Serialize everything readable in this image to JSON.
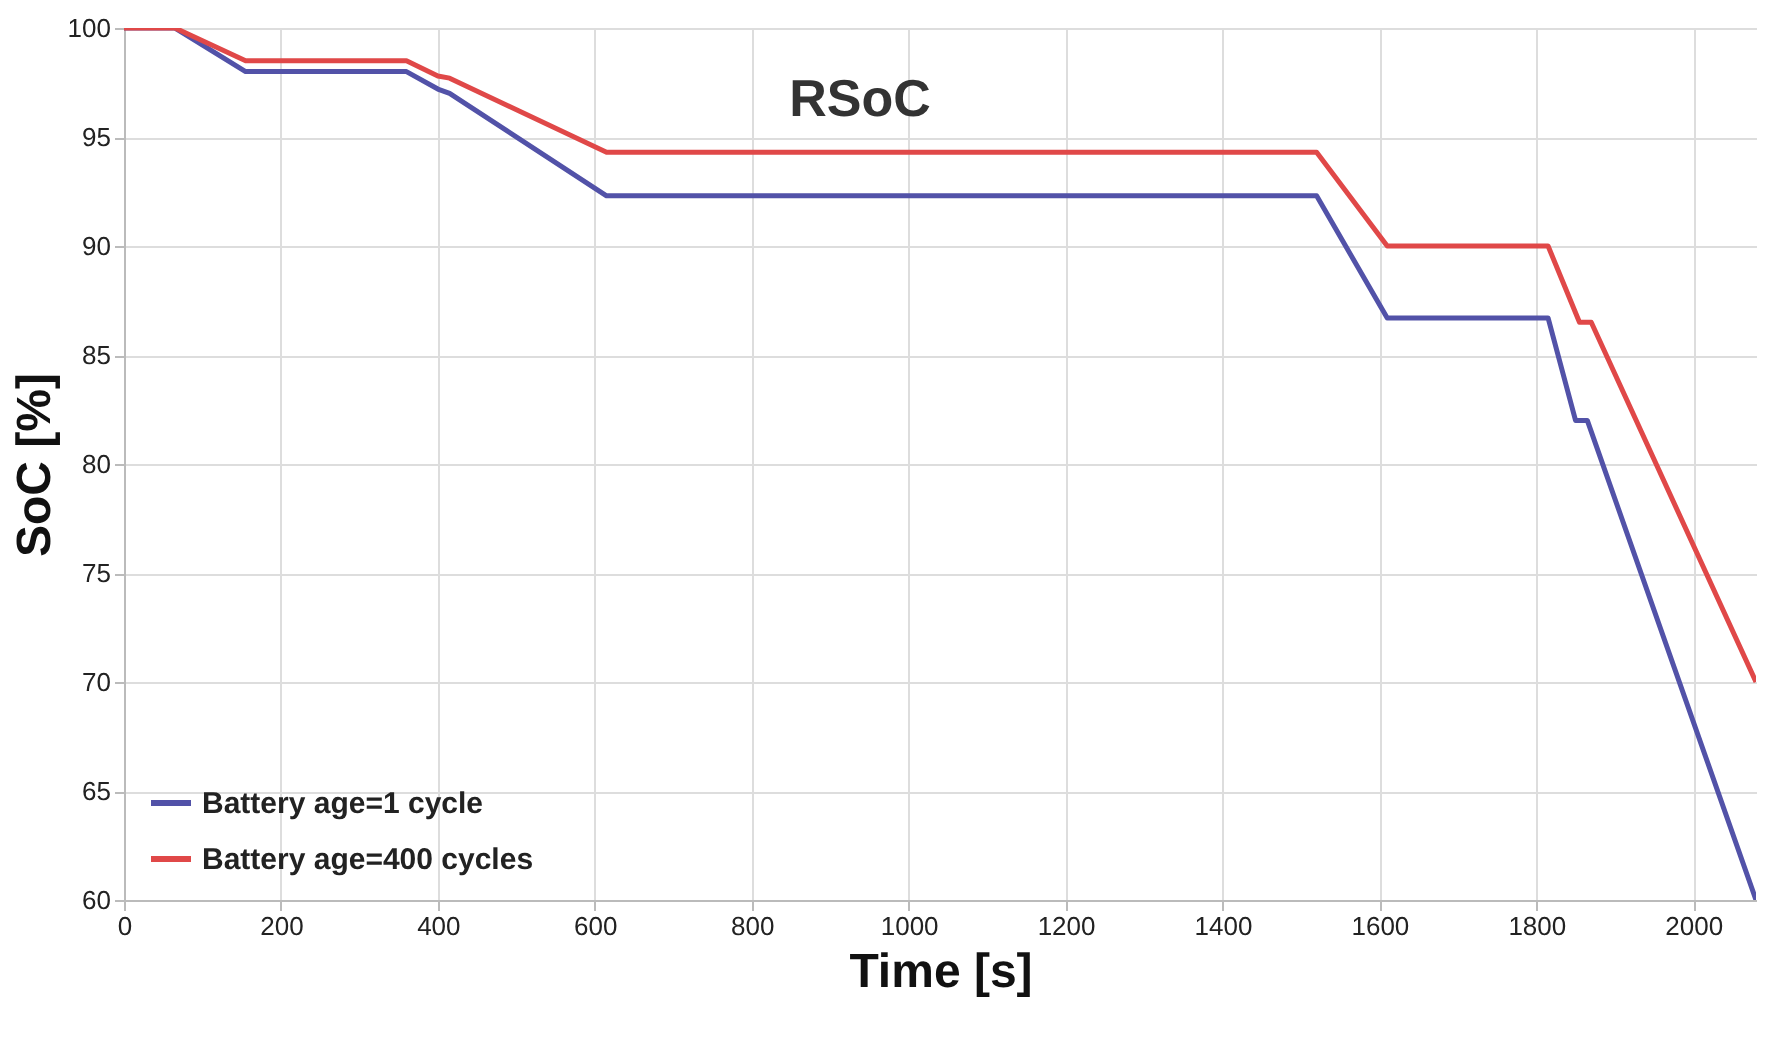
{
  "chart_data": {
    "type": "line",
    "title": "RSoC",
    "xlabel": "Time [s]",
    "ylabel": "SoC [%]",
    "xlim": [
      0,
      2080
    ],
    "xticks": [
      0,
      200,
      400,
      600,
      800,
      1000,
      1200,
      1400,
      1600,
      1800,
      2000
    ],
    "ylim": [
      60,
      100
    ],
    "yticks": [
      60,
      65,
      70,
      75,
      80,
      85,
      90,
      95,
      100
    ],
    "grid": true,
    "legend": "bottom left",
    "series": [
      {
        "name": "Battery age=1 cycle",
        "color": "#5252a8",
        "x": [
          0,
          65,
          155,
          360,
          400,
          415,
          615,
          1520,
          1610,
          1815,
          1850,
          1865,
          2080
        ],
        "values": [
          100,
          100,
          98,
          98,
          97.2,
          97,
          92.3,
          92.3,
          86.7,
          86.7,
          82,
          82,
          60
        ]
      },
      {
        "name": "Battery age=400 cycles",
        "color": "#e04848",
        "x": [
          0,
          65,
          155,
          360,
          400,
          415,
          615,
          1520,
          1610,
          1815,
          1855,
          1870,
          2080
        ],
        "values": [
          100,
          100,
          98.5,
          98.5,
          97.8,
          97.7,
          94.3,
          94.3,
          90,
          90,
          86.5,
          86.5,
          70
        ]
      }
    ]
  }
}
